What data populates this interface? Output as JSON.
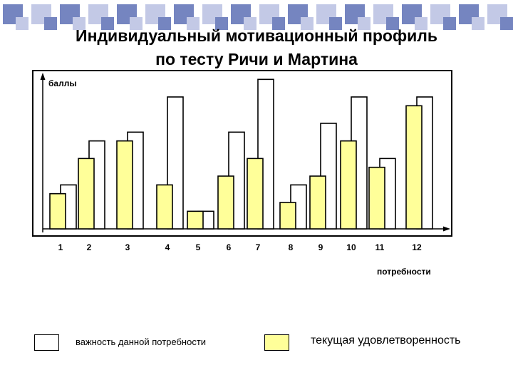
{
  "title": {
    "line1": "Индивидуальный  мотивационный профиль",
    "line2": "по тесту Ричи и Мартина"
  },
  "colors": {
    "importance_fill": "#ffffff",
    "satisfaction_fill": "#ffff99",
    "outline": "#000000",
    "deco_blue": "#7585c0",
    "deco_light": "#c3c9e6"
  },
  "legend": {
    "importance_label": "важность данной потребности",
    "satisfaction_label": "текущая удовлетворенность"
  },
  "chart_data": {
    "type": "bar",
    "title": "Индивидуальный  мотивационный профиль по тесту Ричи и Мартина",
    "ylabel": "баллы",
    "xlabel": "потребности",
    "categories": [
      "1",
      "2",
      "3",
      "4",
      "5",
      "6",
      "7",
      "8",
      "9",
      "10",
      "11",
      "12"
    ],
    "series": [
      {
        "name": "важность данной потребности",
        "values": [
          5,
          10,
          11,
          15,
          2,
          11,
          17,
          5,
          12,
          15,
          8,
          15
        ]
      },
      {
        "name": "текущая удовлетворенность",
        "values": [
          4,
          8,
          10,
          5,
          2,
          6,
          8,
          3,
          6,
          10,
          7,
          14
        ]
      }
    ],
    "ylim": [
      0,
      18
    ],
    "grid": false
  }
}
